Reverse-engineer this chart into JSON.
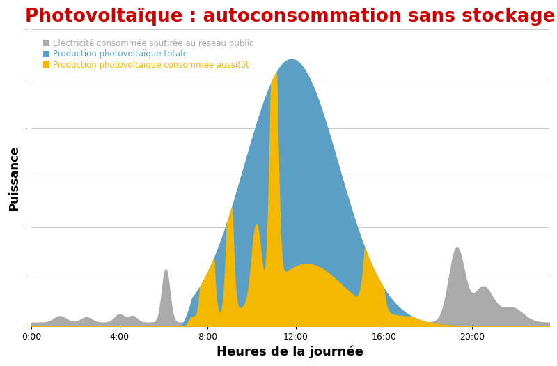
{
  "title": "Photovoltaïque : autoconsommation sans stockage",
  "title_color": "#cc0000",
  "title_fontsize": 19,
  "xlabel": "Heures de la journée",
  "ylabel": "Puissance",
  "xlabel_fontsize": 13,
  "ylabel_fontsize": 12,
  "background_color": "#ffffff",
  "grid_color": "#cccccc",
  "legend_labels": [
    "Electricité consommée soutirée au réseau public",
    "Production photovoltaïque totale",
    "Production photovoltaïque consommée aussitôt"
  ],
  "legend_colors": [
    "#aaaaaa",
    "#5b9fc4",
    "#f5b800"
  ],
  "legend_fontsize": 8.5,
  "xtick_labels": [
    "0:00",
    "4:00",
    "8:00",
    "12:00",
    "16:00",
    "20:00"
  ],
  "xtick_positions": [
    0,
    4,
    8,
    12,
    16,
    20
  ],
  "xlim": [
    0,
    23.5
  ],
  "ylim": [
    0,
    10
  ],
  "num_gridlines": 6
}
